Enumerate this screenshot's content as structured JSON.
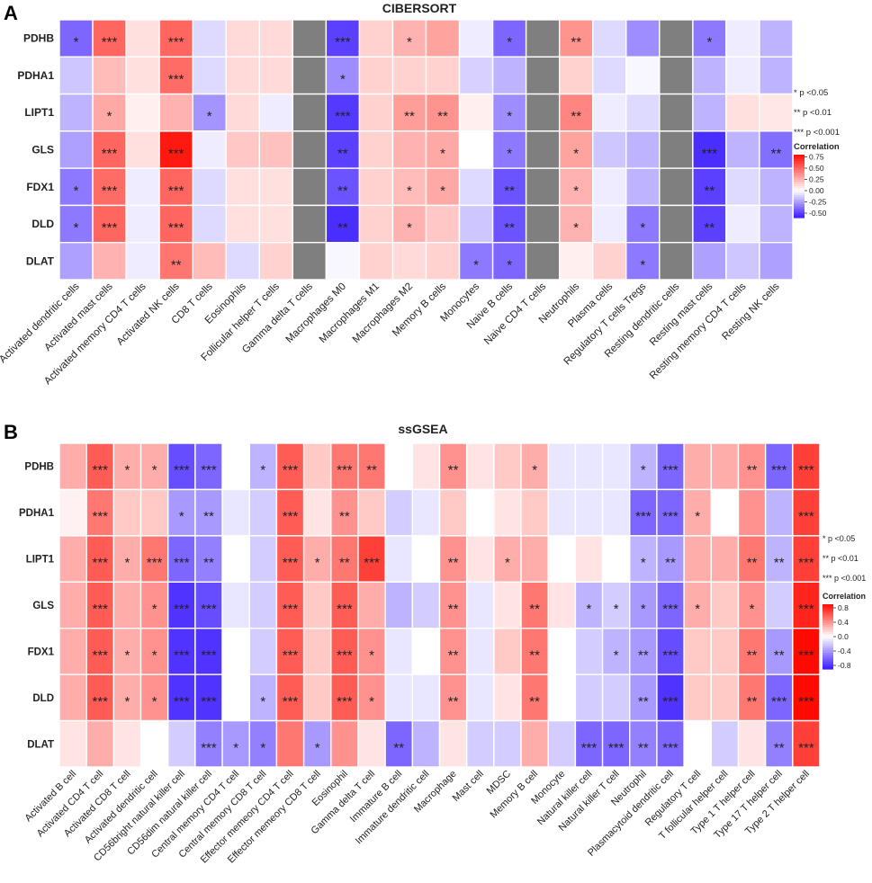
{
  "chart_data": [
    {
      "type": "heatmap",
      "panel_label": "A",
      "title": "CIBERSORT",
      "rows": [
        "PDHB",
        "PDHA1",
        "LIPT1",
        "GLS",
        "FDX1",
        "DLD",
        "DLAT"
      ],
      "columns": [
        "Activated dendritic cells",
        "Activated mast cells",
        "Activated memory CD4 T cells",
        "Activated NK cells",
        "CD8 T cells",
        "Eosinophils",
        "Follicular helper T cells",
        "Gamma delta T cells",
        "Macrophages M0",
        "Macrophages M1",
        "Macrophages M2",
        "Memory B cells",
        "Monocytes",
        "Naive B cells",
        "Naive CD4 T cells",
        "Neutrophils",
        "Plasma cells",
        "Regulatory T cells Tregs",
        "Resting dendritic cells",
        "Resting mast cells",
        "Resting memory CD4 T cells",
        "Resting NK cells"
      ],
      "values": [
        [
          -0.4,
          0.5,
          0.1,
          0.5,
          -0.1,
          0.12,
          0.12,
          null,
          -0.5,
          0.15,
          0.25,
          0.3,
          -0.05,
          -0.4,
          null,
          0.35,
          -0.1,
          -0.3,
          null,
          -0.35,
          -0.05,
          -0.2
        ],
        [
          -0.15,
          0.22,
          0.1,
          0.48,
          -0.1,
          0.12,
          0.12,
          null,
          -0.3,
          0.15,
          0.15,
          0.15,
          -0.12,
          -0.2,
          null,
          0.15,
          -0.1,
          -0.02,
          null,
          -0.2,
          -0.05,
          -0.2
        ],
        [
          -0.2,
          0.28,
          0.05,
          0.25,
          -0.28,
          0.12,
          -0.05,
          null,
          -0.52,
          0.15,
          0.32,
          0.35,
          0.05,
          -0.3,
          null,
          0.4,
          -0.05,
          -0.1,
          null,
          -0.2,
          0.1,
          0.08
        ],
        [
          -0.25,
          0.5,
          0.1,
          0.75,
          -0.05,
          0.18,
          0.2,
          null,
          -0.5,
          0.15,
          0.25,
          0.28,
          0.0,
          -0.35,
          null,
          0.3,
          -0.15,
          -0.2,
          null,
          -0.55,
          -0.2,
          -0.38
        ],
        [
          -0.35,
          0.48,
          -0.05,
          0.5,
          -0.1,
          0.1,
          0.1,
          null,
          -0.45,
          0.15,
          0.22,
          0.28,
          -0.1,
          -0.45,
          null,
          0.25,
          -0.05,
          -0.2,
          null,
          -0.5,
          -0.1,
          -0.2
        ],
        [
          -0.35,
          0.5,
          -0.05,
          0.5,
          -0.1,
          0.1,
          0.1,
          null,
          -0.55,
          0.15,
          0.25,
          0.18,
          -0.15,
          -0.45,
          null,
          0.25,
          -0.05,
          -0.35,
          null,
          -0.5,
          -0.05,
          -0.2
        ],
        [
          -0.25,
          0.25,
          -0.05,
          0.45,
          0.22,
          -0.1,
          0.15,
          null,
          -0.02,
          0.15,
          0.12,
          0.15,
          -0.35,
          -0.4,
          null,
          0.05,
          0.15,
          -0.35,
          null,
          -0.25,
          -0.15,
          -0.25
        ]
      ],
      "significance": [
        [
          "*",
          "***",
          "",
          "***",
          "",
          "",
          "",
          "",
          "***",
          "",
          "*",
          "",
          "",
          "*",
          "",
          "**",
          "",
          "",
          "",
          "*",
          "",
          ""
        ],
        [
          "",
          "",
          "",
          "***",
          "",
          "",
          "",
          "",
          "*",
          "",
          "",
          "",
          "",
          "",
          "",
          "",
          "",
          "",
          "",
          "",
          "",
          ""
        ],
        [
          "",
          "*",
          "",
          "",
          "*",
          "",
          "",
          "",
          "***",
          "",
          "**",
          "**",
          "",
          "*",
          "",
          "**",
          "",
          "",
          "",
          "",
          "",
          ""
        ],
        [
          "",
          "***",
          "",
          "***",
          "",
          "",
          "",
          "",
          "**",
          "",
          "",
          "*",
          "",
          "*",
          "",
          "*",
          "",
          "",
          "",
          "***",
          "",
          "**"
        ],
        [
          "*",
          "***",
          "",
          "***",
          "",
          "",
          "",
          "",
          "**",
          "",
          "*",
          "*",
          "",
          "**",
          "",
          "*",
          "",
          "",
          "",
          "**",
          "",
          ""
        ],
        [
          "*",
          "***",
          "",
          "***",
          "",
          "",
          "",
          "",
          "**",
          "",
          "*",
          "",
          "",
          "**",
          "",
          "*",
          "",
          "*",
          "",
          "**",
          "",
          ""
        ],
        [
          "",
          "",
          "",
          "**",
          "",
          "",
          "",
          "",
          "",
          "",
          "",
          "",
          "*",
          "*",
          "",
          "",
          "",
          "*",
          "",
          "",
          "",
          ""
        ]
      ],
      "legend_title": "Correlation",
      "legend_range": [
        -0.6,
        0.8
      ],
      "legend_ticks": [
        "0.75",
        "0.50",
        "0.25",
        "0.00",
        "-0.25",
        "-0.50"
      ],
      "legend_tick_values": [
        0.75,
        0.5,
        0.25,
        0.0,
        -0.25,
        -0.5
      ],
      "sig_notes": [
        "* p <0.05",
        "** p <0.01",
        "*** p <0.001"
      ]
    },
    {
      "type": "heatmap",
      "panel_label": "B",
      "title": "ssGSEA",
      "rows": [
        "PDHB",
        "PDHA1",
        "LIPT1",
        "GLS",
        "FDX1",
        "DLD",
        "DLAT"
      ],
      "columns": [
        "Activated B cell",
        "Activated CD4 T cell",
        "Activated CD8 T cell",
        "Activated dendritic cell",
        "CD56bright natural killer cell",
        "CD56dim natural killer cell",
        "Central memory CD4 T cell",
        "Central memory CD8 T cell",
        "Effector memeory CD4 T cell",
        "Effector memeory CD8 T cell",
        "Eosinophil",
        "Gamma delta T cell",
        "Immature B cell",
        "Immature dendritic cell",
        "Macrophage",
        "Mast cell",
        "MDSC",
        "Memory B cell",
        "Monocyte",
        "Natural killer cell",
        "Natural killer T cell",
        "Neutrophil",
        "Plasmacytoid dendritic cell",
        "Regulatory T cell",
        "T follicular helper cell",
        "Type 1 T helper cell",
        "Type 17 T helper cell",
        "Type 2 T helper cell"
      ],
      "values": [
        [
          0.3,
          0.6,
          0.3,
          0.3,
          -0.7,
          -0.6,
          0.0,
          -0.3,
          0.6,
          0.2,
          0.5,
          0.5,
          0.0,
          0.1,
          0.4,
          0.1,
          0.2,
          0.3,
          -0.1,
          -0.1,
          -0.1,
          -0.3,
          -0.6,
          0.3,
          0.3,
          0.4,
          -0.6,
          0.7
        ],
        [
          0.05,
          0.5,
          0.2,
          0.2,
          -0.4,
          -0.4,
          -0.1,
          -0.2,
          0.6,
          0.1,
          0.4,
          0.2,
          -0.2,
          -0.1,
          0.2,
          0.0,
          0.1,
          0.2,
          -0.1,
          -0.1,
          -0.1,
          -0.6,
          -0.6,
          0.3,
          0.0,
          0.4,
          -0.3,
          0.7
        ],
        [
          0.3,
          0.6,
          0.3,
          0.5,
          -0.6,
          -0.5,
          0.0,
          -0.2,
          0.6,
          0.3,
          0.5,
          0.7,
          -0.1,
          0.0,
          0.4,
          0.1,
          0.3,
          0.3,
          0.0,
          0.1,
          0.0,
          -0.3,
          -0.4,
          0.3,
          0.3,
          0.5,
          -0.3,
          0.7
        ],
        [
          0.3,
          0.6,
          0.3,
          0.4,
          -0.8,
          -0.7,
          -0.1,
          -0.2,
          0.6,
          0.2,
          0.6,
          0.3,
          -0.3,
          -0.2,
          0.4,
          -0.1,
          0.1,
          0.5,
          0.1,
          -0.3,
          -0.2,
          -0.4,
          -0.6,
          0.3,
          0.2,
          0.4,
          -0.2,
          0.8
        ],
        [
          0.3,
          0.6,
          0.3,
          0.4,
          -0.8,
          -0.8,
          0.0,
          -0.2,
          0.6,
          0.2,
          0.6,
          0.4,
          -0.1,
          0.0,
          0.4,
          -0.1,
          0.2,
          0.5,
          0.0,
          -0.2,
          -0.3,
          -0.4,
          -0.7,
          0.2,
          0.2,
          0.5,
          -0.4,
          0.9
        ],
        [
          0.3,
          0.6,
          0.3,
          0.4,
          -0.8,
          -0.8,
          0.0,
          -0.3,
          0.6,
          0.2,
          0.6,
          0.4,
          -0.1,
          -0.1,
          0.4,
          -0.1,
          0.1,
          0.5,
          0.0,
          -0.2,
          -0.2,
          -0.4,
          -0.8,
          0.2,
          0.2,
          0.5,
          -0.6,
          0.9
        ],
        [
          0.1,
          0.3,
          0.1,
          0.0,
          -0.2,
          -0.5,
          -0.4,
          -0.5,
          0.5,
          -0.4,
          0.4,
          0.1,
          -0.6,
          -0.3,
          0.1,
          -0.2,
          -0.2,
          0.3,
          -0.2,
          -0.6,
          -0.6,
          -0.5,
          -0.6,
          0.0,
          -0.2,
          0.1,
          -0.5,
          0.7
        ]
      ],
      "significance": [
        [
          "",
          "***",
          "*",
          "*",
          "***",
          "***",
          "",
          "*",
          "***",
          "",
          "***",
          "**",
          "",
          "",
          "**",
          "",
          "",
          "*",
          "",
          "",
          "",
          "*",
          "***",
          "",
          "",
          "**",
          "***",
          "***"
        ],
        [
          "",
          "***",
          "",
          "",
          "*",
          "**",
          "",
          "",
          "***",
          "",
          "**",
          "",
          "",
          "",
          "",
          "",
          "",
          "",
          "",
          "",
          "",
          "***",
          "***",
          "*",
          "",
          "",
          "",
          "***"
        ],
        [
          "",
          "***",
          "*",
          "***",
          "***",
          "**",
          "",
          "",
          "***",
          "*",
          "**",
          "***",
          "",
          "",
          "**",
          "",
          "*",
          "",
          "",
          "",
          "",
          "*",
          "**",
          "",
          "",
          "**",
          "**",
          "***"
        ],
        [
          "",
          "***",
          "",
          "*",
          "***",
          "***",
          "",
          "",
          "***",
          "",
          "***",
          "",
          "",
          "",
          "**",
          "",
          "",
          "**",
          "",
          "*",
          "*",
          "*",
          "***",
          "*",
          "",
          "*",
          "",
          "***"
        ],
        [
          "",
          "***",
          "*",
          "*",
          "***",
          "***",
          "",
          "",
          "***",
          "",
          "***",
          "*",
          "",
          "",
          "**",
          "",
          "",
          "**",
          "",
          "",
          "*",
          "**",
          "***",
          "",
          "",
          "**",
          "**",
          "***"
        ],
        [
          "",
          "***",
          "*",
          "*",
          "***",
          "***",
          "",
          "*",
          "***",
          "",
          "***",
          "*",
          "",
          "",
          "**",
          "",
          "",
          "**",
          "",
          "",
          "",
          "**",
          "***",
          "",
          "",
          "**",
          "***",
          "***"
        ],
        [
          "",
          "",
          "",
          "",
          "",
          "***",
          "*",
          "*",
          "",
          "*",
          "",
          "",
          "**",
          "",
          "",
          "",
          "",
          "",
          "",
          "***",
          "***",
          "**",
          "***",
          "",
          "",
          "",
          "**",
          "***"
        ]
      ],
      "legend_title": "Correlation",
      "legend_range": [
        -0.9,
        0.9
      ],
      "legend_ticks": [
        "0.8",
        "0.4",
        "0.0",
        "-0.4",
        "-0.8"
      ],
      "legend_tick_values": [
        0.8,
        0.4,
        0.0,
        -0.4,
        -0.8
      ],
      "sig_notes": [
        "* p <0.05",
        "** p <0.01",
        "*** p <0.001"
      ]
    }
  ],
  "colors": {
    "low": "#3a1aff",
    "mid": "#ffffff",
    "high": "#ff0a00",
    "na": "#7f7f7f",
    "star": "#222222",
    "cell_border": "#ffffff"
  }
}
